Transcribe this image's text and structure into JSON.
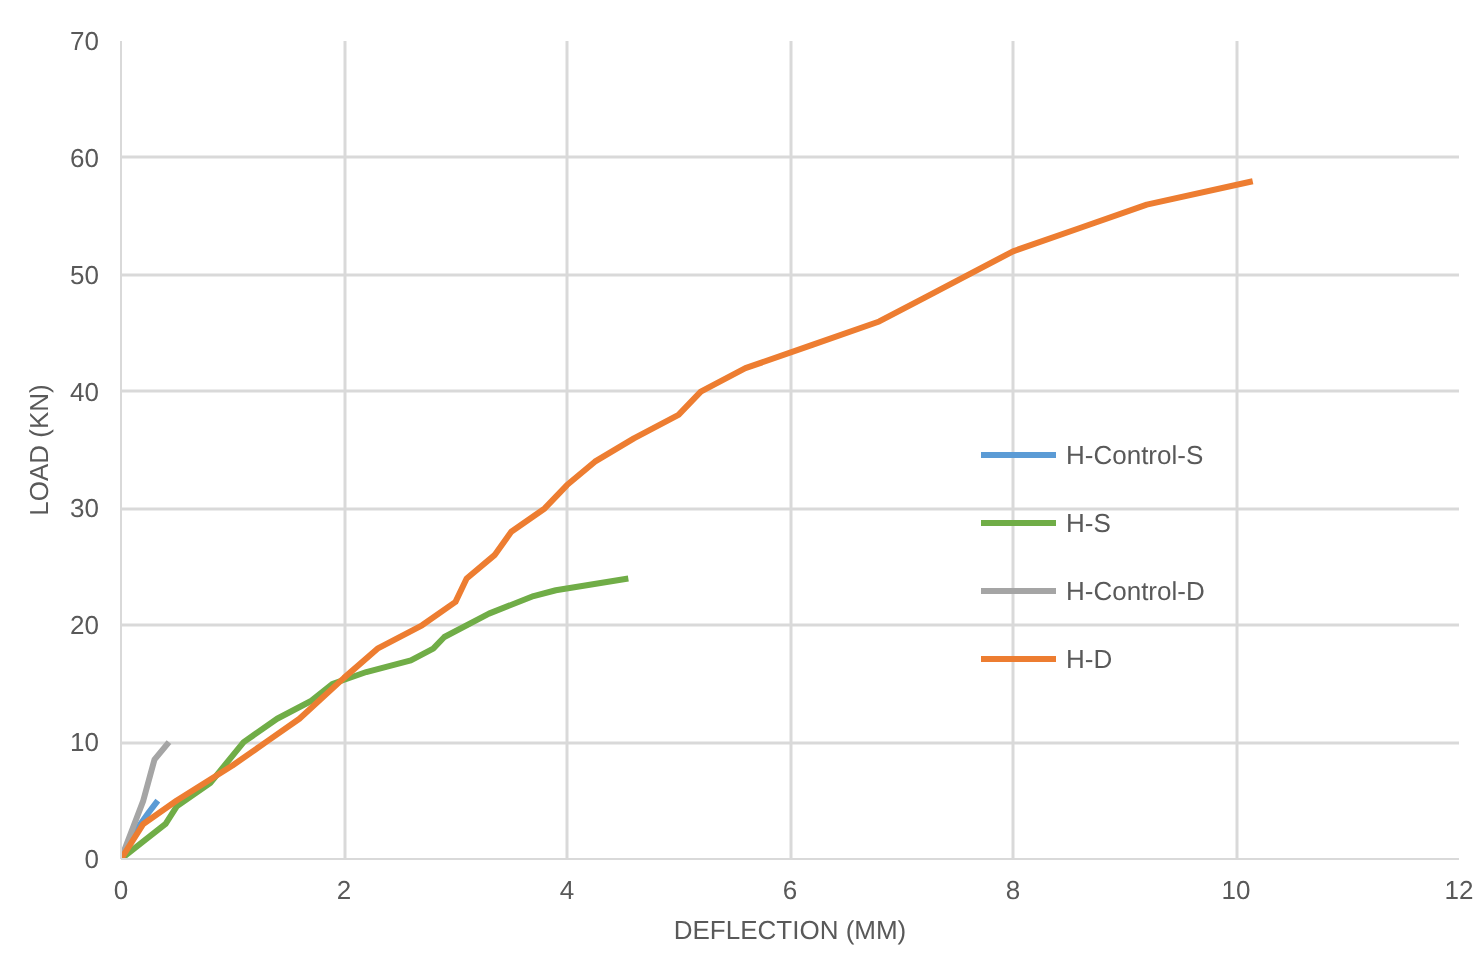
{
  "chart_data": {
    "type": "line",
    "xlabel": "DEFLECTION (MM)",
    "ylabel": "LOAD (KN)",
    "xlim": [
      0,
      12
    ],
    "ylim": [
      0,
      70
    ],
    "xticks": [
      0,
      2,
      4,
      6,
      8,
      10,
      12
    ],
    "yticks": [
      0,
      10,
      20,
      30,
      40,
      50,
      60,
      70
    ],
    "grid": true,
    "legend": "right",
    "series": [
      {
        "name": "H-Control-S",
        "color": "#5b9bd5",
        "x": [
          0,
          0.1,
          0.25,
          0.33
        ],
        "values": [
          0,
          2,
          4,
          5
        ]
      },
      {
        "name": "H-S",
        "color": "#70ad47",
        "x": [
          0,
          0.2,
          0.4,
          0.5,
          0.8,
          1.1,
          1.4,
          1.7,
          1.9,
          2.2,
          2.6,
          2.8,
          2.9,
          3.3,
          3.7,
          3.9,
          4.55
        ],
        "values": [
          0,
          1.5,
          3,
          4.5,
          6.5,
          10,
          12,
          13.5,
          15,
          16,
          17,
          18,
          19,
          21,
          22.5,
          23,
          24
        ]
      },
      {
        "name": "H-Control-D",
        "color": "#a5a5a5",
        "x": [
          0,
          0.1,
          0.2,
          0.3,
          0.43
        ],
        "values": [
          0,
          2.5,
          5,
          8.5,
          10
        ]
      },
      {
        "name": "H-D",
        "color": "#ed7d31",
        "x": [
          0,
          0.2,
          0.5,
          1,
          1.3,
          1.6,
          2,
          2.3,
          2.7,
          3,
          3.1,
          3.35,
          3.5,
          3.8,
          4,
          4.25,
          4.6,
          5,
          5.2,
          5.6,
          6.2,
          6.8,
          7.2,
          8,
          8.6,
          9.2,
          10.15
        ],
        "values": [
          0,
          3,
          5,
          8,
          10,
          12,
          15.5,
          18,
          20,
          22,
          24,
          26,
          28,
          30,
          32,
          34,
          36,
          38,
          40,
          42,
          44,
          46,
          48,
          52,
          54,
          56,
          58
        ]
      }
    ]
  }
}
